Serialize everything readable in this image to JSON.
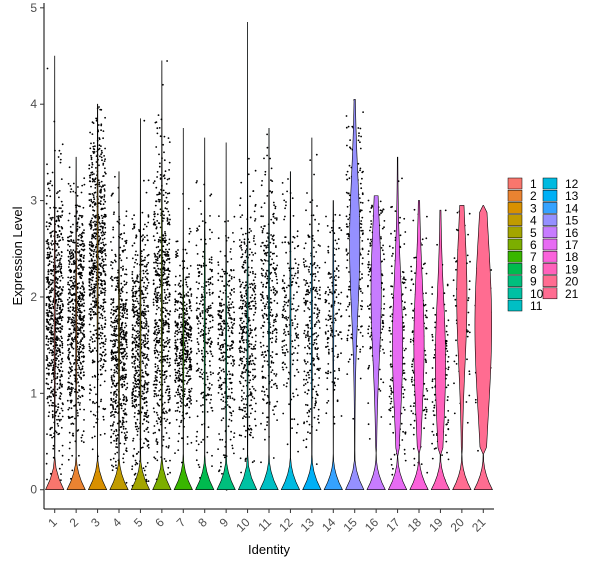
{
  "chart_data": {
    "type": "violin",
    "xlabel": "Identity",
    "ylabel": "Expression Level",
    "ylim": [
      -0.2,
      5.05
    ],
    "yticks": [
      0,
      1,
      2,
      3,
      4,
      5
    ],
    "grid": false,
    "legend_placement": "right",
    "points_overlay": true,
    "categories": [
      "1",
      "2",
      "3",
      "4",
      "5",
      "6",
      "7",
      "8",
      "9",
      "10",
      "11",
      "12",
      "13",
      "14",
      "15",
      "16",
      "17",
      "18",
      "19",
      "20",
      "21"
    ],
    "colors": [
      "#F8766D",
      "#EA8331",
      "#D89000",
      "#C09B00",
      "#A3A500",
      "#7CAE00",
      "#39B600",
      "#00BB4E",
      "#00BF7D",
      "#00C1A3",
      "#00BFC4",
      "#00BAE0",
      "#00B0F6",
      "#35A2FF",
      "#9590FF",
      "#C77CFF",
      "#E76BF3",
      "#FA62DB",
      "#FF62BC",
      "#FF6C91",
      "#FF6C91"
    ],
    "series": [
      {
        "name": "1",
        "max": 4.5,
        "median": 1.8,
        "band_low": 0.5,
        "band_high": 3.2,
        "n_points": 700
      },
      {
        "name": "2",
        "max": 3.45,
        "median": 1.75,
        "band_low": 0.5,
        "band_high": 3.0,
        "n_points": 650
      },
      {
        "name": "3",
        "max": 4.0,
        "median": 2.4,
        "band_low": 1.0,
        "band_high": 3.8,
        "n_points": 650
      },
      {
        "name": "4",
        "max": 3.3,
        "median": 1.5,
        "band_low": 0.3,
        "band_high": 2.8,
        "n_points": 550
      },
      {
        "name": "5",
        "max": 3.85,
        "median": 1.5,
        "band_low": 0.3,
        "band_high": 2.9,
        "n_points": 550
      },
      {
        "name": "6",
        "max": 4.45,
        "median": 1.9,
        "band_low": 0.4,
        "band_high": 3.6,
        "n_points": 600
      },
      {
        "name": "7",
        "max": 3.75,
        "median": 1.5,
        "band_low": 0.6,
        "band_high": 2.5,
        "n_points": 450
      },
      {
        "name": "8",
        "max": 3.65,
        "median": 1.65,
        "band_low": 0.6,
        "band_high": 3.0,
        "n_points": 260
      },
      {
        "name": "9",
        "max": 3.6,
        "median": 1.45,
        "band_low": 0.4,
        "band_high": 2.8,
        "n_points": 300
      },
      {
        "name": "10",
        "max": 4.85,
        "median": 1.7,
        "band_low": 0.5,
        "band_high": 3.1,
        "n_points": 380
      },
      {
        "name": "11",
        "max": 3.75,
        "median": 1.9,
        "band_low": 0.5,
        "band_high": 3.1,
        "n_points": 300
      },
      {
        "name": "12",
        "max": 3.3,
        "median": 1.8,
        "band_low": 0.6,
        "band_high": 3.0,
        "n_points": 180
      },
      {
        "name": "13",
        "max": 3.65,
        "median": 1.7,
        "band_low": 0.5,
        "band_high": 3.0,
        "n_points": 250
      },
      {
        "name": "14",
        "max": 3.0,
        "median": 1.9,
        "band_low": 0.8,
        "band_high": 2.9,
        "n_points": 160
      },
      {
        "name": "15",
        "max": 4.05,
        "median": 2.55,
        "band_low": 1.3,
        "band_high": 3.9,
        "n_points": 260
      },
      {
        "name": "16",
        "max": 3.05,
        "median": 2.05,
        "band_low": 0.9,
        "band_high": 2.95,
        "n_points": 220
      },
      {
        "name": "17",
        "max": 3.45,
        "median": 1.5,
        "band_low": 0.5,
        "band_high": 2.9,
        "n_points": 230
      },
      {
        "name": "18",
        "max": 3.0,
        "median": 1.5,
        "band_low": 0.4,
        "band_high": 2.9,
        "n_points": 200
      },
      {
        "name": "19",
        "max": 2.9,
        "median": 1.3,
        "band_low": 0.4,
        "band_high": 2.4,
        "n_points": 170
      },
      {
        "name": "20",
        "max": 2.95,
        "median": 2.0,
        "band_low": 0.5,
        "band_high": 2.9,
        "n_points": 80
      },
      {
        "name": "21",
        "max": 2.95,
        "median": 1.7,
        "band_low": 0.5,
        "band_high": 2.9,
        "n_points": 50
      }
    ]
  }
}
